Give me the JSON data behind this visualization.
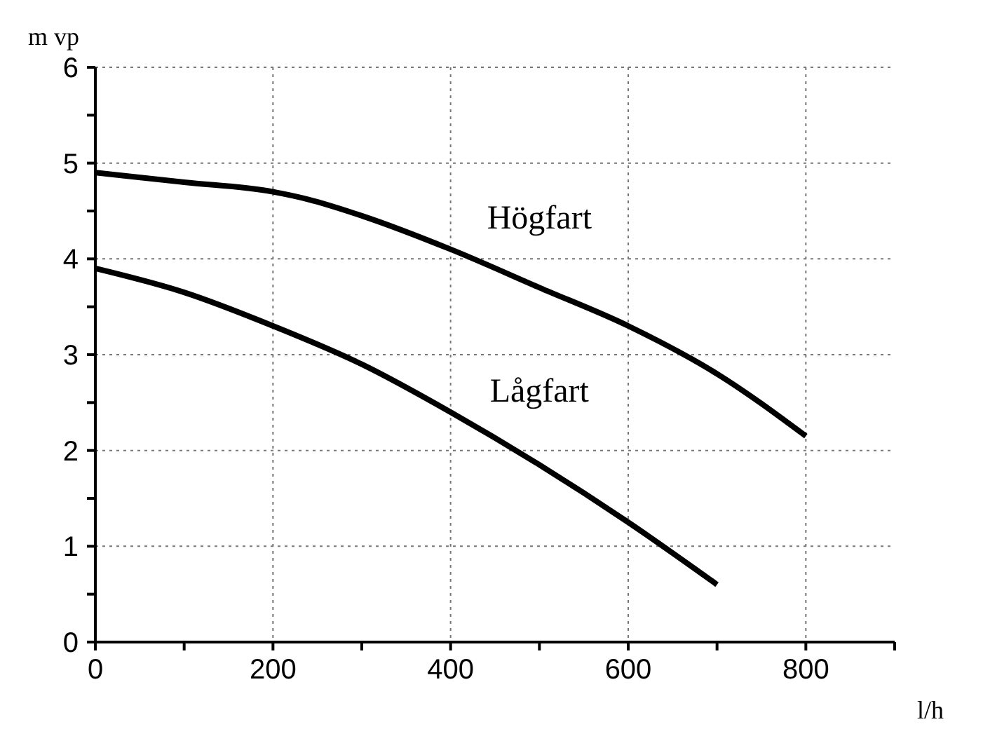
{
  "chart_data": {
    "type": "line",
    "xlabel": "l/h",
    "ylabel": "m vp",
    "xlim": [
      0,
      900
    ],
    "xticks": [
      0,
      {
        "value": 100,
        "label": null
      },
      200,
      {
        "value": 300,
        "label": null
      },
      400,
      {
        "value": 500,
        "label": null
      },
      600,
      {
        "value": 700,
        "label": null
      },
      800,
      {
        "value": 900,
        "label": null
      }
    ],
    "ylim": [
      0,
      6
    ],
    "yticks": [
      0,
      {
        "value": 0.5,
        "label": null
      },
      1,
      {
        "value": 1.5,
        "label": null
      },
      2,
      {
        "value": 2.5,
        "label": null
      },
      3,
      {
        "value": 3.5,
        "label": null
      },
      4,
      {
        "value": 4.5,
        "label": null
      },
      5,
      {
        "value": 5.5,
        "label": null
      },
      6
    ],
    "grid": true,
    "marker": "none",
    "line_style": "solid",
    "series": [
      {
        "name": "Högfart",
        "color": "#000000",
        "x": [
          0,
          100,
          200,
          240,
          300,
          400,
          500,
          600,
          700,
          800
        ],
        "values": [
          4.9,
          4.8,
          4.7,
          4.62,
          4.45,
          4.1,
          3.7,
          3.3,
          2.8,
          2.15
        ]
      },
      {
        "name": "Lågfart",
        "color": "#000000",
        "x": [
          0,
          100,
          200,
          300,
          400,
          500,
          600,
          700
        ],
        "values": [
          3.9,
          3.65,
          3.3,
          2.9,
          2.4,
          1.85,
          1.25,
          0.6
        ]
      }
    ]
  }
}
